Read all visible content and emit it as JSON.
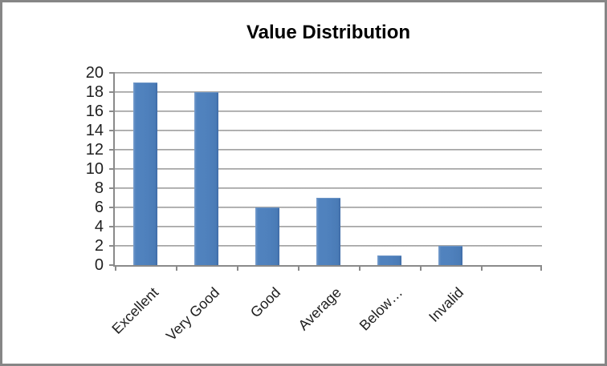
{
  "window": {
    "background": "#ffffff",
    "border_color": "#868686"
  },
  "chart_data": {
    "type": "bar",
    "title": "Value Distribution",
    "categories": [
      "Excellent",
      "Very Good",
      "Good",
      "Average",
      "Below…",
      "Invalid"
    ],
    "values": [
      19,
      18,
      6,
      7,
      1,
      2
    ],
    "xlabel": "",
    "ylabel": "",
    "ylim": [
      0,
      20
    ],
    "ytick_step": 2,
    "ytick_labels": [
      "0",
      "2",
      "4",
      "6",
      "8",
      "10",
      "12",
      "14",
      "16",
      "18",
      "20"
    ],
    "grid": "horizontal",
    "legend": "none",
    "trailing_empty_slots": 1,
    "x_label_rotation_deg": -45,
    "bar_color": "#4F81BD",
    "gridline_color": "#ABABAB",
    "axis_color": "#8A8A8A",
    "text_color": "#1F1F1F",
    "title_color": "#000000"
  }
}
